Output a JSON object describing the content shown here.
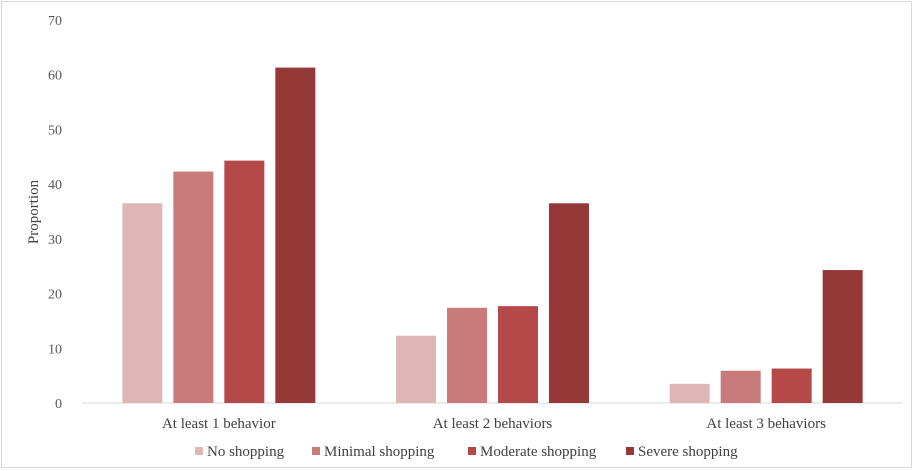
{
  "chart_data": {
    "type": "bar",
    "title": "",
    "xlabel": "",
    "ylabel": "Proportion",
    "ylim": [
      0,
      70
    ],
    "yticks": [
      0,
      10,
      20,
      30,
      40,
      50,
      60,
      70
    ],
    "grid": false,
    "legend_position": "bottom",
    "categories": [
      "At least 1 behavior",
      "At least 2 behaviors",
      "At least 3 behaviors"
    ],
    "series": [
      {
        "name": "No shopping",
        "color": "#dfb6b6",
        "values": [
          36.5,
          12.3,
          3.5
        ]
      },
      {
        "name": "Minimal shopping",
        "color": "#c97b7b",
        "values": [
          42.3,
          17.4,
          5.9
        ]
      },
      {
        "name": "Moderate shopping",
        "color": "#b54848",
        "values": [
          44.3,
          17.7,
          6.3
        ]
      },
      {
        "name": "Severe shopping",
        "color": "#953838",
        "values": [
          61.3,
          36.5,
          24.3
        ]
      }
    ]
  }
}
